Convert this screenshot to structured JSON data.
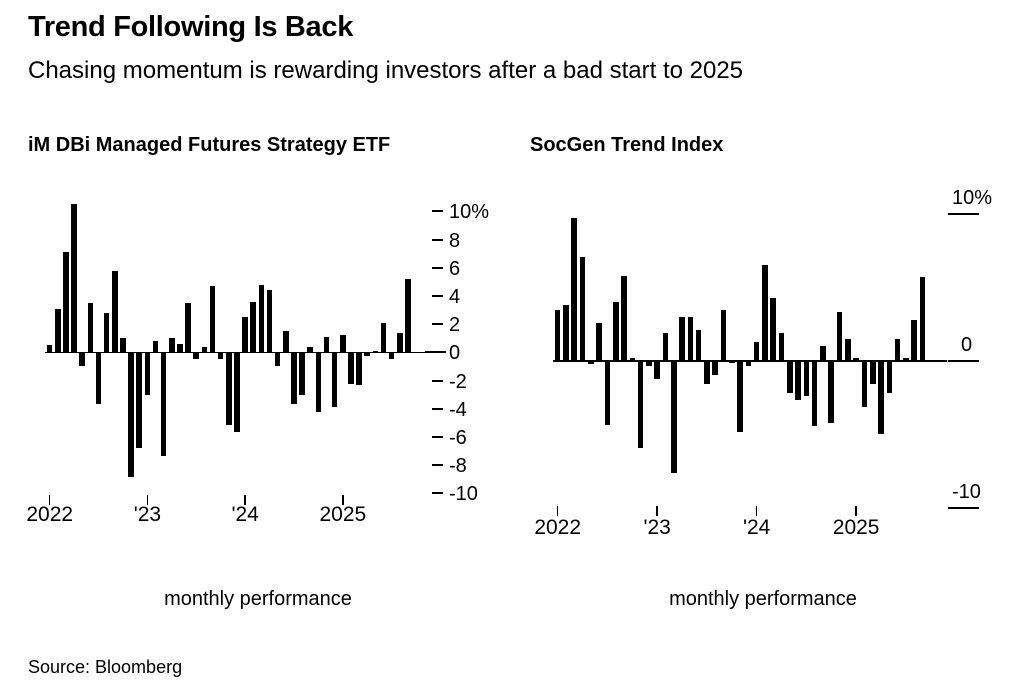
{
  "header": {
    "title": "Trend Following Is Back",
    "subtitle": "Chasing momentum is rewarding investors after a bad start to 2025"
  },
  "source_line": "Source: Bloomberg",
  "chart_data": [
    {
      "type": "bar",
      "title": "iM DBi Managed Futures Strategy ETF",
      "caption": "monthly performance",
      "unit": "percent",
      "bar_color": "#000000",
      "grid": false,
      "legend": "none",
      "ylim": [
        -10,
        10
      ],
      "x": [
        "Jan 2022",
        "Feb 2022",
        "Mar 2022",
        "Apr 2022",
        "May 2022",
        "Jun 2022",
        "Jul 2022",
        "Aug 2022",
        "Sep 2022",
        "Oct 2022",
        "Nov 2022",
        "Dec 2022",
        "Jan 2023",
        "Feb 2023",
        "Mar 2023",
        "Apr 2023",
        "May 2023",
        "Jun 2023",
        "Jul 2023",
        "Aug 2023",
        "Sep 2023",
        "Oct 2023",
        "Nov 2023",
        "Dec 2023",
        "Jan 2024",
        "Feb 2024",
        "Mar 2024",
        "Apr 2024",
        "May 2024",
        "Jun 2024",
        "Jul 2024",
        "Aug 2024",
        "Sep 2024",
        "Oct 2024",
        "Nov 2024",
        "Dec 2024",
        "Jan 2025",
        "Feb 2025",
        "Mar 2025",
        "Apr 2025",
        "May 2025",
        "Jun 2025",
        "Jul 2025",
        "Aug 2025",
        "Sep 2025"
      ],
      "values": [
        0.5,
        3.1,
        7.1,
        10.5,
        -0.9,
        3.5,
        -3.6,
        2.8,
        5.8,
        1.0,
        -8.8,
        -6.7,
        -3.0,
        0.8,
        -7.3,
        1.0,
        0.6,
        3.5,
        -0.4,
        0.4,
        4.7,
        -0.4,
        -5.1,
        -5.6,
        2.5,
        3.6,
        4.8,
        4.4,
        -0.9,
        1.5,
        -3.6,
        -3.0,
        0.4,
        -4.2,
        1.1,
        -3.8,
        1.2,
        -2.2,
        -2.3,
        -0.2,
        0.1,
        2.1,
        -0.4,
        1.4,
        5.2
      ],
      "y_tick_labels": [
        "10%",
        "8",
        "6",
        "4",
        "2",
        "0",
        "-2",
        "-4",
        "-6",
        "-8",
        "-10"
      ],
      "y_tick_values": [
        10,
        8,
        6,
        4,
        2,
        0,
        -2,
        -4,
        -6,
        -8,
        -10
      ],
      "x_tick_labels": [
        "2022",
        "'23",
        "'24",
        "2025"
      ]
    },
    {
      "type": "bar",
      "title": "SocGen Trend Index",
      "caption": "monthly performance",
      "unit": "percent",
      "bar_color": "#000000",
      "grid": false,
      "legend": "none",
      "ylim": [
        -10,
        10
      ],
      "x": [
        "Jan 2022",
        "Feb 2022",
        "Mar 2022",
        "Apr 2022",
        "May 2022",
        "Jun 2022",
        "Jul 2022",
        "Aug 2022",
        "Sep 2022",
        "Oct 2022",
        "Nov 2022",
        "Dec 2022",
        "Jan 2023",
        "Feb 2023",
        "Mar 2023",
        "Apr 2023",
        "May 2023",
        "Jun 2023",
        "Jul 2023",
        "Aug 2023",
        "Sep 2023",
        "Oct 2023",
        "Nov 2023",
        "Dec 2023",
        "Jan 2024",
        "Feb 2024",
        "Mar 2024",
        "Apr 2024",
        "May 2024",
        "Jun 2024",
        "Jul 2024",
        "Aug 2024",
        "Sep 2024",
        "Oct 2024",
        "Nov 2024",
        "Dec 2024",
        "Jan 2025",
        "Feb 2025",
        "Mar 2025",
        "Apr 2025",
        "May 2025",
        "Jun 2025",
        "Jul 2025",
        "Aug 2025",
        "Sep 2025"
      ],
      "values": [
        3.5,
        3.8,
        9.7,
        7.1,
        -0.15,
        2.6,
        -4.3,
        4.0,
        5.8,
        0.2,
        -5.9,
        -0.3,
        -1.2,
        1.9,
        -7.6,
        3.0,
        3.0,
        2.1,
        -1.5,
        -0.9,
        3.5,
        -0.1,
        -4.8,
        -0.3,
        1.3,
        6.5,
        4.3,
        1.9,
        -2.1,
        -2.6,
        -2.3,
        -4.4,
        1.0,
        -4.2,
        3.3,
        1.5,
        0.2,
        -3.1,
        -1.5,
        -4.9,
        -2.1,
        1.5,
        0.2,
        2.8,
        5.7
      ],
      "y_tick_labels": [
        "10%",
        "0",
        "-10"
      ],
      "y_tick_values": [
        10,
        0,
        -10
      ],
      "x_tick_labels": [
        "2022",
        "'23",
        "'24",
        "2025"
      ]
    }
  ]
}
